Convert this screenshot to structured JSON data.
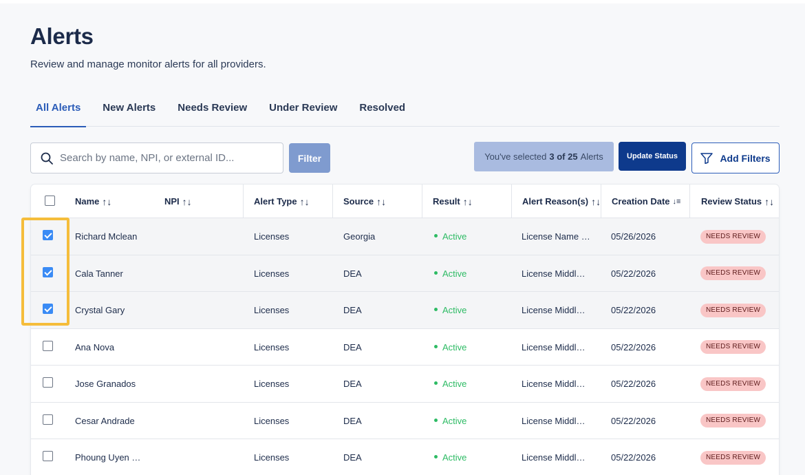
{
  "page": {
    "title": "Alerts",
    "subtitle": "Review and manage monitor alerts for all providers."
  },
  "tabs": [
    {
      "label": "All Alerts",
      "active": true
    },
    {
      "label": "New Alerts",
      "active": false
    },
    {
      "label": "Needs Review",
      "active": false
    },
    {
      "label": "Under Review",
      "active": false
    },
    {
      "label": "Resolved",
      "active": false
    }
  ],
  "toolbar": {
    "search_placeholder": "Search by name, NPI, or external ID...",
    "search_icon": "search-icon",
    "filter_label": "Filter",
    "selected_prefix": "You've selected",
    "selected_count": "3 of 25",
    "selected_suffix": "Alerts",
    "update_status_label": "Update Status",
    "add_filters_label": "Add Filters",
    "add_filters_icon": "funnel-icon"
  },
  "table": {
    "columns": [
      "Name",
      "NPI",
      "Alert Type",
      "Source",
      "Result",
      "Alert Reason(s)",
      "Creation Date",
      "Review Status"
    ],
    "sort_icon": "↑↓",
    "sort_desc_icon": "↓≡",
    "rows": [
      {
        "selected": true,
        "name": "Richard Mclean",
        "npi": "",
        "alert_type": "Licenses",
        "source": "Georgia",
        "result": "Active",
        "reason": "License Name …",
        "date": "05/26/2026",
        "status": "NEEDS REVIEW"
      },
      {
        "selected": true,
        "name": "Cala Tanner",
        "npi": "",
        "alert_type": "Licenses",
        "source": "DEA",
        "result": "Active",
        "reason": "License Middl…",
        "date": "05/22/2026",
        "status": "NEEDS REVIEW"
      },
      {
        "selected": true,
        "name": "Crystal Gary",
        "npi": "",
        "alert_type": "Licenses",
        "source": "DEA",
        "result": "Active",
        "reason": "License Middl…",
        "date": "05/22/2026",
        "status": "NEEDS REVIEW"
      },
      {
        "selected": false,
        "name": "Ana Nova",
        "npi": "",
        "alert_type": "Licenses",
        "source": "DEA",
        "result": "Active",
        "reason": "License Middl…",
        "date": "05/22/2026",
        "status": "NEEDS REVIEW"
      },
      {
        "selected": false,
        "name": "Jose Granados",
        "npi": "",
        "alert_type": "Licenses",
        "source": "DEA",
        "result": "Active",
        "reason": "License Middl…",
        "date": "05/22/2026",
        "status": "NEEDS REVIEW"
      },
      {
        "selected": false,
        "name": "Cesar Andrade",
        "npi": "",
        "alert_type": "Licenses",
        "source": "DEA",
        "result": "Active",
        "reason": "License Middl…",
        "date": "05/22/2026",
        "status": "NEEDS REVIEW"
      },
      {
        "selected": false,
        "name": "Phoung Uyen …",
        "npi": "",
        "alert_type": "Licenses",
        "source": "DEA",
        "result": "Active",
        "reason": "License Middl…",
        "date": "05/22/2026",
        "status": "NEEDS REVIEW"
      }
    ]
  },
  "colors": {
    "accent": "#2b5cb8",
    "primary_button": "#0e3a8c",
    "active_green": "#2dbb64",
    "needs_review_bg": "#f9c6c6",
    "checkbox_checked": "#3a8bf5",
    "highlight_outline": "#f5bd3b"
  }
}
